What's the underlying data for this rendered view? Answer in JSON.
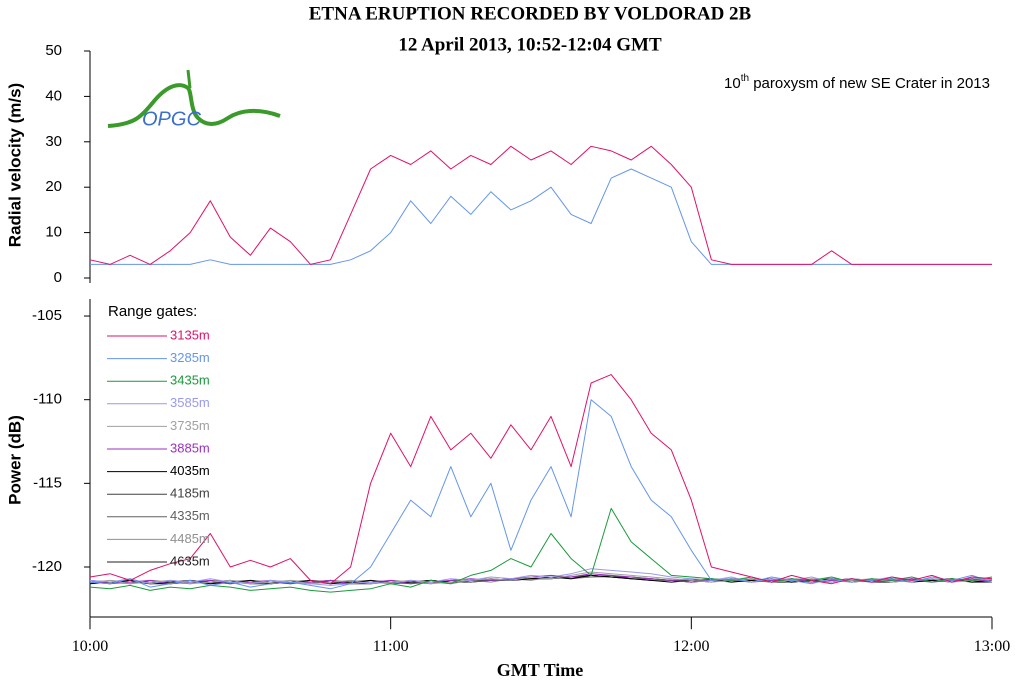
{
  "chart_data": [
    {
      "type": "line",
      "title": "ETNA ERUPTION RECORDED BY VOLDORAD 2B",
      "subtitle": "12 April 2013, 10:52-12:04 GMT",
      "annotation": [
        "10",
        "th",
        " paroxysm of new SE Crater in 2013"
      ],
      "logo_text": "OPGC",
      "ylabel": "Radial velocity (m/s)",
      "ylim": [
        0,
        50
      ],
      "yticks": [
        0,
        10,
        20,
        30,
        40,
        50
      ],
      "xlim": [
        "10:00",
        "13:00"
      ],
      "x": [
        "10:00",
        "10:04",
        "10:08",
        "10:12",
        "10:16",
        "10:20",
        "10:24",
        "10:28",
        "10:32",
        "10:36",
        "10:40",
        "10:44",
        "10:48",
        "10:52",
        "10:56",
        "11:00",
        "11:04",
        "11:08",
        "11:12",
        "11:16",
        "11:20",
        "11:24",
        "11:28",
        "11:32",
        "11:36",
        "11:40",
        "11:44",
        "11:48",
        "11:52",
        "11:56",
        "12:00",
        "12:04",
        "12:08",
        "12:12",
        "12:16",
        "12:20",
        "12:24",
        "12:28",
        "12:32",
        "12:36",
        "12:40",
        "12:44",
        "12:48",
        "12:52",
        "12:56",
        "13:00"
      ],
      "series": [
        {
          "name": "3135m",
          "color": "#e0106a",
          "values": [
            4,
            3,
            5,
            3,
            6,
            10,
            17,
            9,
            5,
            11,
            8,
            3,
            4,
            14,
            24,
            27,
            25,
            28,
            24,
            27,
            25,
            29,
            26,
            28,
            25,
            29,
            28,
            26,
            29,
            25,
            20,
            4,
            3,
            3,
            3,
            3,
            3,
            6,
            3,
            3,
            3,
            3,
            3,
            3,
            3,
            3
          ]
        },
        {
          "name": "3285m",
          "color": "#6495ed",
          "values": [
            3,
            3,
            3,
            3,
            3,
            3,
            4,
            3,
            3,
            3,
            3,
            3,
            3,
            4,
            6,
            10,
            17,
            12,
            18,
            14,
            19,
            15,
            17,
            20,
            14,
            12,
            22,
            24,
            22,
            20,
            8,
            3,
            3,
            3,
            3,
            3,
            3,
            3,
            3,
            3,
            3,
            3,
            3,
            3,
            3,
            3
          ]
        }
      ]
    },
    {
      "type": "line",
      "ylabel": "Power (dB)",
      "xlabel": "GMT Time",
      "legend_title": "Range gates:",
      "ylim": [
        -123,
        -104
      ],
      "yticks": [
        -120,
        -115,
        -110,
        -105
      ],
      "xlim": [
        "10:00",
        "13:00"
      ],
      "xticks": [
        "10:00",
        "11:00",
        "12:00",
        "13:00"
      ],
      "x": [
        "10:00",
        "10:04",
        "10:08",
        "10:12",
        "10:16",
        "10:20",
        "10:24",
        "10:28",
        "10:32",
        "10:36",
        "10:40",
        "10:44",
        "10:48",
        "10:52",
        "10:56",
        "11:00",
        "11:04",
        "11:08",
        "11:12",
        "11:16",
        "11:20",
        "11:24",
        "11:28",
        "11:32",
        "11:36",
        "11:40",
        "11:44",
        "11:48",
        "11:52",
        "11:56",
        "12:00",
        "12:04",
        "12:08",
        "12:12",
        "12:16",
        "12:20",
        "12:24",
        "12:28",
        "12:32",
        "12:36",
        "12:40",
        "12:44",
        "12:48",
        "12:52",
        "12:56",
        "13:00"
      ],
      "series": [
        {
          "name": "3135m",
          "color": "#e0106a",
          "values": [
            -120.6,
            -120.4,
            -120.8,
            -120.2,
            -119.8,
            -119.5,
            -118,
            -120,
            -119.6,
            -120,
            -119.5,
            -120.8,
            -121,
            -120,
            -115,
            -112,
            -114,
            -111,
            -113,
            -112,
            -113.5,
            -111.5,
            -113,
            -111,
            -114,
            -109,
            -108.5,
            -110,
            -112,
            -113,
            -116,
            -120,
            -120.3,
            -120.6,
            -120.9,
            -120.5,
            -120.8,
            -121,
            -120.7,
            -120.9,
            -120.6,
            -120.8,
            -120.5,
            -120.9,
            -120.6,
            -120.7
          ]
        },
        {
          "name": "3285m",
          "color": "#6495ed",
          "values": [
            -120.9,
            -121,
            -120.7,
            -121.2,
            -121,
            -120.8,
            -121.1,
            -120.9,
            -121.2,
            -121,
            -120.9,
            -121.1,
            -121.3,
            -121,
            -120,
            -118,
            -116,
            -117,
            -114,
            -117,
            -115,
            -119,
            -116,
            -114,
            -117,
            -110,
            -111,
            -114,
            -116,
            -117,
            -119,
            -120.8,
            -120.7,
            -120.9,
            -120.6,
            -120.8,
            -121,
            -120.7,
            -120.9,
            -120.8,
            -120.7,
            -120.9,
            -120.6,
            -120.8,
            -120.5,
            -120.9
          ]
        },
        {
          "name": "3435m",
          "color": "#1a9a3a",
          "values": [
            -121.2,
            -121.3,
            -121.1,
            -121.4,
            -121.2,
            -121.3,
            -121.1,
            -121.2,
            -121.4,
            -121.3,
            -121.2,
            -121.4,
            -121.5,
            -121.4,
            -121.3,
            -121,
            -121.2,
            -120.8,
            -121,
            -120.5,
            -120.2,
            -119.5,
            -120,
            -118,
            -119.5,
            -120.5,
            -116.5,
            -118.5,
            -119.5,
            -120.5,
            -120.6,
            -120.7,
            -120.8,
            -120.6,
            -120.9,
            -120.7,
            -120.8,
            -120.6,
            -120.9,
            -120.7,
            -120.8,
            -120.6,
            -120.9,
            -120.7,
            -120.8,
            -120.6
          ]
        },
        {
          "name": "3585m",
          "color": "#9999ee",
          "values": [
            -120.8,
            -120.9,
            -120.7,
            -121,
            -120.8,
            -120.9,
            -120.7,
            -120.9,
            -121,
            -120.8,
            -120.9,
            -121,
            -121.1,
            -121,
            -120.9,
            -121,
            -120.8,
            -120.9,
            -120.7,
            -120.8,
            -120.6,
            -120.7,
            -120.5,
            -120.6,
            -120.4,
            -120.1,
            -120.2,
            -120.3,
            -120.4,
            -120.6,
            -120.7,
            -120.8,
            -120.6,
            -120.9,
            -120.7,
            -120.8,
            -120.6,
            -120.9,
            -120.7,
            -120.8,
            -120.6,
            -120.8,
            -120.7,
            -120.9,
            -120.6,
            -120.8
          ]
        },
        {
          "name": "3735m",
          "color": "#a0a0a0",
          "values": [
            -120.9,
            -120.8,
            -121,
            -120.9,
            -120.8,
            -121,
            -120.9,
            -120.8,
            -121,
            -120.9,
            -120.8,
            -121,
            -120.9,
            -120.8,
            -121,
            -120.9,
            -120.8,
            -121,
            -120.9,
            -120.8,
            -120.7,
            -120.8,
            -120.6,
            -120.7,
            -120.5,
            -120.3,
            -120.4,
            -120.5,
            -120.6,
            -120.7,
            -120.8,
            -120.9,
            -120.8,
            -120.7,
            -120.9,
            -120.8,
            -120.7,
            -120.9,
            -120.8,
            -120.7,
            -120.9,
            -120.8,
            -120.7,
            -120.9,
            -120.8,
            -120.7
          ]
        },
        {
          "name": "3885m",
          "color": "#9b30c0",
          "values": [
            -120.8,
            -121,
            -120.9,
            -120.8,
            -121,
            -120.9,
            -120.8,
            -121,
            -120.9,
            -120.8,
            -121,
            -120.9,
            -120.8,
            -121,
            -120.9,
            -120.8,
            -121,
            -120.9,
            -120.8,
            -120.7,
            -120.8,
            -120.7,
            -120.6,
            -120.5,
            -120.6,
            -120.4,
            -120.5,
            -120.6,
            -120.7,
            -120.8,
            -120.9,
            -120.8,
            -120.7,
            -120.9,
            -120.8,
            -120.7,
            -120.9,
            -120.8,
            -120.7,
            -120.9,
            -120.8,
            -120.7,
            -120.9,
            -120.8,
            -120.7,
            -120.9
          ]
        },
        {
          "name": "4035m",
          "color": "#000000",
          "values": [
            -121,
            -120.9,
            -120.8,
            -121,
            -120.9,
            -120.8,
            -121,
            -120.9,
            -120.8,
            -121,
            -120.9,
            -120.8,
            -121,
            -120.9,
            -120.8,
            -121,
            -120.9,
            -120.8,
            -120.9,
            -120.8,
            -120.7,
            -120.8,
            -120.7,
            -120.6,
            -120.7,
            -120.5,
            -120.6,
            -120.7,
            -120.8,
            -120.9,
            -120.8,
            -120.7,
            -120.9,
            -120.8,
            -120.7,
            -120.9,
            -120.8,
            -120.7,
            -120.9,
            -120.8,
            -120.7,
            -120.9,
            -120.8,
            -120.7,
            -120.9,
            -120.8
          ]
        },
        {
          "name": "4185m",
          "color": "#404040",
          "values": [
            -120.9,
            -121,
            -120.8,
            -120.9,
            -121,
            -120.8,
            -120.9,
            -121,
            -120.8,
            -120.9,
            -121,
            -120.8,
            -120.9,
            -121,
            -120.8,
            -120.9,
            -121,
            -120.8,
            -120.9,
            -120.8,
            -120.8,
            -120.7,
            -120.7,
            -120.6,
            -120.6,
            -120.5,
            -120.6,
            -120.6,
            -120.7,
            -120.8,
            -120.8,
            -120.9,
            -120.7,
            -120.8,
            -120.9,
            -120.7,
            -120.8,
            -120.9,
            -120.7,
            -120.8,
            -120.9,
            -120.7,
            -120.8,
            -120.9,
            -120.7,
            -120.8
          ]
        },
        {
          "name": "4335m",
          "color": "#606060",
          "values": [
            -120.8,
            -120.9,
            -121,
            -120.8,
            -120.9,
            -121,
            -120.8,
            -120.9,
            -121,
            -120.8,
            -120.9,
            -121,
            -120.8,
            -120.9,
            -121,
            -120.8,
            -120.9,
            -121,
            -120.8,
            -120.9,
            -120.8,
            -120.8,
            -120.7,
            -120.7,
            -120.6,
            -120.6,
            -120.5,
            -120.7,
            -120.7,
            -120.8,
            -120.9,
            -120.7,
            -120.8,
            -120.9,
            -120.7,
            -120.8,
            -120.9,
            -120.7,
            -120.8,
            -120.9,
            -120.7,
            -120.8,
            -120.9,
            -120.7,
            -120.8,
            -120.9
          ]
        },
        {
          "name": "4485m",
          "color": "#909090",
          "values": [
            -121,
            -120.8,
            -120.9,
            -121,
            -120.8,
            -120.9,
            -121,
            -120.8,
            -120.9,
            -121,
            -120.8,
            -120.9,
            -121,
            -120.8,
            -120.9,
            -121,
            -120.8,
            -120.9,
            -121,
            -120.8,
            -120.9,
            -120.7,
            -120.8,
            -120.6,
            -120.7,
            -120.6,
            -120.6,
            -120.7,
            -120.8,
            -120.8,
            -120.7,
            -120.8,
            -120.9,
            -120.7,
            -120.8,
            -120.9,
            -120.7,
            -120.8,
            -120.9,
            -120.7,
            -120.8,
            -120.9,
            -120.7,
            -120.8,
            -120.9,
            -120.7
          ]
        },
        {
          "name": "4635m",
          "color": "#202020",
          "values": [
            -120.9,
            -120.9,
            -120.8,
            -121,
            -121,
            -120.9,
            -120.9,
            -120.8,
            -121,
            -121,
            -120.9,
            -120.9,
            -120.8,
            -121,
            -121,
            -120.9,
            -120.9,
            -120.8,
            -120.9,
            -120.9,
            -120.8,
            -120.8,
            -120.7,
            -120.7,
            -120.6,
            -120.5,
            -120.6,
            -120.7,
            -120.8,
            -120.8,
            -120.9,
            -120.8,
            -120.8,
            -120.7,
            -120.9,
            -120.9,
            -120.8,
            -120.8,
            -120.7,
            -120.9,
            -120.9,
            -120.8,
            -120.8,
            -120.7,
            -120.9,
            -120.9
          ]
        }
      ]
    }
  ]
}
